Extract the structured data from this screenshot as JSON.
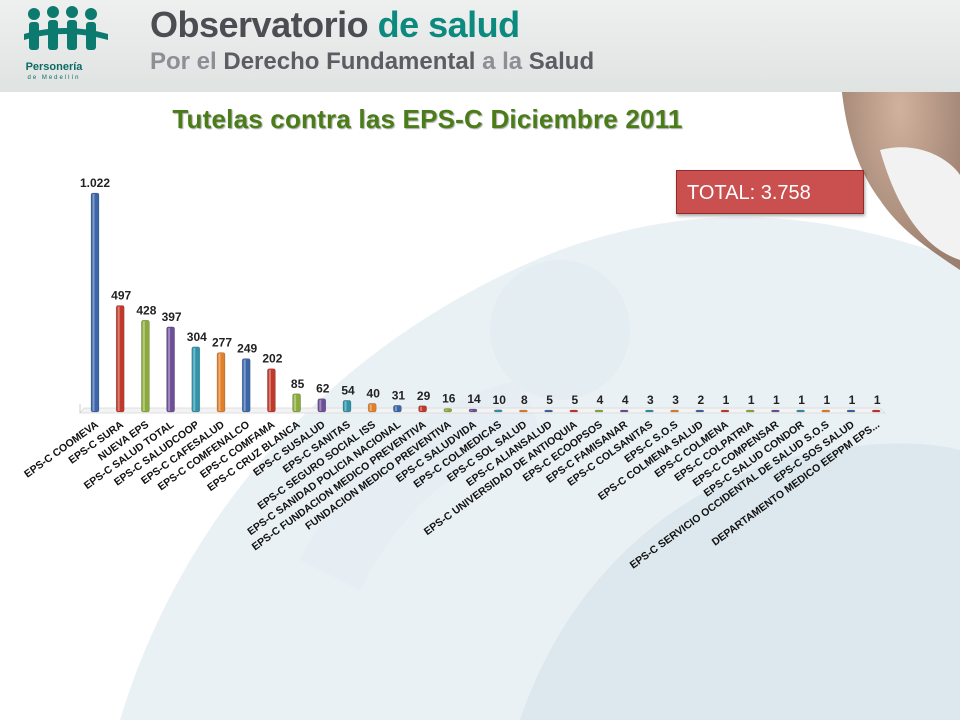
{
  "header": {
    "brand_title_main": "Observatorio",
    "brand_title_mid": " de ",
    "brand_title_accent": "salud",
    "subtitle_por": "Por el ",
    "subtitle_derecho": "Derecho Fundamental",
    "subtitle_a": " a la ",
    "subtitle_salud": "Salud",
    "logo_name": "Personería",
    "logo_sub": "de Medellín",
    "logo_icon": "people-group-icon"
  },
  "total_label": "TOTAL: 3.758",
  "colors": {
    "title_green": "#4a7c18",
    "total_bg": "#c9504f",
    "brand_teal": "#0d8a7f"
  },
  "chart_data": {
    "type": "bar",
    "title": "Tutelas contra las EPS-C Diciembre 2011",
    "ylim": [
      0,
      1100
    ],
    "grid": false,
    "categories": [
      "EPS-C COOMEVA",
      "EPS-C SURA",
      "NUEVA EPS",
      "EPS-C SALUD TOTAL",
      "EPS-C SALUDCOOP",
      "EPS-C CAFESALUD",
      "EPS-C COMFENALCO",
      "EPS-C COMFAMA",
      "EPS-C CRUZ BLANCA",
      "EPS-C SUSALUD",
      "EPS-C SANITAS",
      "EPS-C SEGURO SOCIAL ISS",
      "EPS-C SANIDAD POLICIA NACIONAL",
      "EPS-C FUNDACION MEDICO PREVENTIVA",
      "FUNDACION MEDICO PREVENTIVA",
      "EPS-C SALUDVIDA",
      "EPS-C COLMEDICAS",
      "EPS-C SOL SALUD",
      "EPS-C ALIANSALUD",
      "EPS-C UNIVERSIDAD DE ANTIOQUIA",
      "EPS-C ECOOPSOS",
      "EPS-C FAMISANAR",
      "EPS-C COLSANITAS",
      "EPS-C S.O.S",
      "EPS-C COLMENA SALUD",
      "EPS-C COLMENA",
      "EPS-C COLPATRIA",
      "EPS-C COMPENSAR",
      "EPS-C SALUD CONDOR",
      "EPS-C SERVICIO OCCIDENTAL DE SALUD S.O.S",
      "EPS-C SOS SALUD",
      "DEPARTAMENTO MEDICO EEPPM EPS..."
    ],
    "values": [
      1022,
      497,
      428,
      397,
      304,
      277,
      249,
      202,
      85,
      62,
      54,
      40,
      31,
      29,
      16,
      14,
      10,
      8,
      5,
      5,
      4,
      4,
      3,
      3,
      2,
      1,
      1,
      1,
      1,
      1,
      1,
      1
    ],
    "value_labels": [
      "1.022",
      "497",
      "428",
      "397",
      "304",
      "277",
      "249",
      "202",
      "85",
      "62",
      "54",
      "40",
      "31",
      "29",
      "16",
      "14",
      "10",
      "8",
      "5",
      "5",
      "4",
      "4",
      "3",
      "3",
      "2",
      "1",
      "1",
      "1",
      "1",
      "1",
      "1",
      "1"
    ],
    "colors": [
      "#3b66a8",
      "#c0392b",
      "#8aab3c",
      "#6d4e99",
      "#2f93aa",
      "#e0802a",
      "#3b66a8",
      "#c0392b",
      "#8aab3c",
      "#6d4e99",
      "#2f93aa",
      "#e0802a",
      "#3b66a8",
      "#c0392b",
      "#8aab3c",
      "#6d4e99",
      "#2f93aa",
      "#e0802a",
      "#3b66a8",
      "#c0392b",
      "#8aab3c",
      "#6d4e99",
      "#2f93aa",
      "#e0802a",
      "#3b66a8",
      "#c0392b",
      "#8aab3c",
      "#6d4e99",
      "#2f93aa",
      "#e0802a",
      "#3b66a8",
      "#c0392b"
    ]
  }
}
